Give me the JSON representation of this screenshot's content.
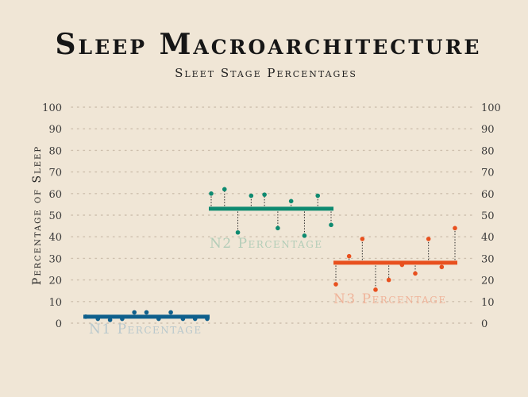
{
  "chart_data": {
    "type": "scatter",
    "title": "Sleep Macroarchitecture",
    "subtitle": "Sleet Stage Percentages",
    "ylabel": "Percentage of Sleep",
    "ylim": [
      0,
      100
    ],
    "yticks": [
      0,
      10,
      20,
      30,
      40,
      50,
      60,
      70,
      80,
      90,
      100
    ],
    "grid": true,
    "series": [
      {
        "name": "N1 Percentage",
        "color": "#0e5f8c",
        "labelColor": "#b9c8cc",
        "mean": 3,
        "values": [
          3,
          2,
          1.5,
          2,
          5,
          5,
          2,
          5,
          2,
          2,
          2
        ]
      },
      {
        "name": "N2 Percentage",
        "color": "#0e8a70",
        "labelColor": "#b3cdb8",
        "mean": 53,
        "values": [
          60,
          62,
          42,
          59,
          59.5,
          44,
          56.5,
          40.5,
          59,
          45.5
        ]
      },
      {
        "name": "N3 Percentage",
        "color": "#e8501e",
        "labelColor": "#efb49a",
        "mean": 28,
        "values": [
          18,
          31,
          39,
          15.5,
          20,
          27,
          23,
          39,
          26,
          44
        ]
      }
    ]
  }
}
